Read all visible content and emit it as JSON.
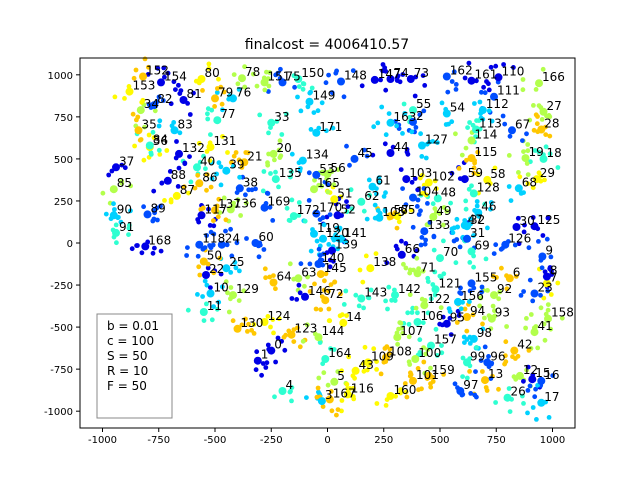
{
  "chart_data": {
    "type": "scatter",
    "title": "finalcost = 4006410.57",
    "xlabel": "",
    "ylabel": "",
    "xlim": [
      -1100,
      1100
    ],
    "ylim": [
      -1100,
      1100
    ],
    "xticks": [
      -1000,
      -750,
      -500,
      -250,
      0,
      250,
      500,
      750,
      1000
    ],
    "yticks": [
      -1000,
      -750,
      -500,
      -250,
      0,
      250,
      500,
      750,
      1000
    ],
    "grid": false,
    "legend_position": "bottom-left",
    "params": [
      "b = 0.01",
      "c = 100",
      "S = 50",
      "R = 10",
      "F = 50"
    ],
    "colormap": "jet",
    "labeled_points": [
      {
        "id": "0",
        "x": -250,
        "y": -640,
        "c": 0.0
      },
      {
        "id": "1",
        "x": -310,
        "y": -700,
        "c": 0.1
      },
      {
        "id": "2",
        "x": 380,
        "y": 720,
        "c": 0.1
      },
      {
        "id": "3",
        "x": -25,
        "y": -940,
        "c": 0.05
      },
      {
        "id": "4",
        "x": -200,
        "y": -880,
        "c": 0.0
      },
      {
        "id": "5",
        "x": 30,
        "y": -825,
        "c": 0.1
      },
      {
        "id": "6",
        "x": 810,
        "y": -210,
        "c": 0.5
      },
      {
        "id": "7",
        "x": 975,
        "y": -240,
        "c": 0.1
      },
      {
        "id": "8",
        "x": 975,
        "y": -200,
        "c": 0.1
      },
      {
        "id": "9",
        "x": 955,
        "y": -80,
        "c": 0.1
      },
      {
        "id": "10",
        "x": -520,
        "y": -300,
        "c": 0.1
      },
      {
        "id": "11",
        "x": -550,
        "y": -410,
        "c": 0.1
      },
      {
        "id": "12",
        "x": 855,
        "y": -790,
        "c": 0.1
      },
      {
        "id": "13",
        "x": 700,
        "y": -815,
        "c": 0.1
      },
      {
        "id": "14",
        "x": 70,
        "y": -475,
        "c": 0.1
      },
      {
        "id": "15",
        "x": 910,
        "y": -810,
        "c": 0.1
      },
      {
        "id": "16",
        "x": 950,
        "y": -820,
        "c": 0.1
      },
      {
        "id": "17",
        "x": 950,
        "y": -950,
        "c": 0.1
      },
      {
        "id": "18",
        "x": 960,
        "y": 500,
        "c": 0.1
      },
      {
        "id": "19",
        "x": 880,
        "y": 505,
        "c": 0.1
      },
      {
        "id": "20",
        "x": -240,
        "y": 530,
        "c": 0.1
      },
      {
        "id": "21",
        "x": -370,
        "y": 480,
        "c": 0.1
      },
      {
        "id": "22",
        "x": -540,
        "y": -190,
        "c": 0.1
      },
      {
        "id": "23",
        "x": 920,
        "y": -300,
        "c": 0.1
      },
      {
        "id": "24",
        "x": -470,
        "y": -10,
        "c": 0.1
      },
      {
        "id": "25",
        "x": -450,
        "y": -150,
        "c": 0.1
      },
      {
        "id": "26",
        "x": 800,
        "y": -920,
        "c": 0.1
      },
      {
        "id": "27",
        "x": 960,
        "y": 780,
        "c": 0.1
      },
      {
        "id": "28",
        "x": 950,
        "y": 675,
        "c": 0.1
      },
      {
        "id": "29",
        "x": 930,
        "y": 380,
        "c": 0.1
      },
      {
        "id": "30",
        "x": 840,
        "y": 95,
        "c": 0.1
      },
      {
        "id": "31",
        "x": 620,
        "y": 25,
        "c": 0.1
      },
      {
        "id": "32",
        "x": 620,
        "y": 100,
        "c": 0.1
      },
      {
        "id": "33",
        "x": -250,
        "y": 715,
        "c": 0.1
      },
      {
        "id": "34",
        "x": -830,
        "y": 790,
        "c": 0.1
      },
      {
        "id": "35",
        "x": -840,
        "y": 670,
        "c": 0.1
      },
      {
        "id": "36",
        "x": -790,
        "y": 570,
        "c": 0.1
      },
      {
        "id": "37",
        "x": -940,
        "y": 450,
        "c": 0.1
      },
      {
        "id": "38",
        "x": -390,
        "y": 325,
        "c": 0.1
      },
      {
        "id": "39",
        "x": -450,
        "y": 430,
        "c": 0.1
      },
      {
        "id": "40",
        "x": -580,
        "y": 450,
        "c": 0.1
      },
      {
        "id": "41",
        "x": 920,
        "y": -530,
        "c": 0.1
      },
      {
        "id": "42",
        "x": 830,
        "y": -640,
        "c": 0.1
      },
      {
        "id": "43",
        "x": 125,
        "y": -760,
        "c": 0.1
      },
      {
        "id": "44",
        "x": 280,
        "y": 535,
        "c": 0.1
      },
      {
        "id": "45",
        "x": 120,
        "y": 500,
        "c": 0.1
      },
      {
        "id": "46",
        "x": 670,
        "y": 180,
        "c": 0.1
      },
      {
        "id": "47",
        "x": 610,
        "y": 105,
        "c": 0.1
      },
      {
        "id": "48",
        "x": 490,
        "y": 265,
        "c": 0.1
      },
      {
        "id": "49",
        "x": 470,
        "y": 155,
        "c": 0.1
      },
      {
        "id": "50",
        "x": -550,
        "y": -110,
        "c": 0.1
      },
      {
        "id": "51",
        "x": 30,
        "y": 260,
        "c": 0.1
      },
      {
        "id": "52",
        "x": 45,
        "y": 165,
        "c": 0.1
      },
      {
        "id": "53",
        "x": -50,
        "y": 405,
        "c": 0.1
      },
      {
        "id": "54",
        "x": 530,
        "y": 770,
        "c": 0.1
      },
      {
        "id": "55",
        "x": 380,
        "y": 790,
        "c": 0.1
      },
      {
        "id": "56",
        "x": 0,
        "y": 410,
        "c": 0.1
      },
      {
        "id": "57",
        "x": 280,
        "y": 160,
        "c": 0.1
      },
      {
        "id": "58",
        "x": 710,
        "y": 375,
        "c": 0.1
      },
      {
        "id": "59",
        "x": 610,
        "y": 380,
        "c": 0.1
      },
      {
        "id": "60",
        "x": -320,
        "y": 0,
        "c": 0.1
      },
      {
        "id": "61",
        "x": 200,
        "y": 335,
        "c": 0.1
      },
      {
        "id": "62",
        "x": 150,
        "y": 245,
        "c": 0.1
      },
      {
        "id": "63",
        "x": -130,
        "y": -210,
        "c": 0.1
      },
      {
        "id": "64",
        "x": -240,
        "y": -235,
        "c": 0.1
      },
      {
        "id": "65",
        "x": 310,
        "y": 160,
        "c": 0.1
      },
      {
        "id": "66",
        "x": 330,
        "y": -70,
        "c": 0.1
      },
      {
        "id": "67",
        "x": 820,
        "y": 670,
        "c": 0.1
      },
      {
        "id": "68",
        "x": 850,
        "y": 325,
        "c": 0.1
      },
      {
        "id": "69",
        "x": 640,
        "y": -50,
        "c": 0.1
      },
      {
        "id": "70",
        "x": 500,
        "y": -90,
        "c": 0.1
      },
      {
        "id": "71",
        "x": 400,
        "y": -180,
        "c": 0.1
      },
      {
        "id": "72",
        "x": -10,
        "y": -340,
        "c": 0.1
      },
      {
        "id": "73",
        "x": 370,
        "y": 975,
        "c": 0.1
      },
      {
        "id": "74",
        "x": 280,
        "y": 975,
        "c": 0.1
      },
      {
        "id": "75",
        "x": -200,
        "y": 955,
        "c": 0.1
      },
      {
        "id": "76",
        "x": -420,
        "y": 860,
        "c": 0.1
      },
      {
        "id": "77",
        "x": -490,
        "y": 730,
        "c": 0.1
      },
      {
        "id": "78",
        "x": -380,
        "y": 980,
        "c": 0.1
      },
      {
        "id": "79",
        "x": -500,
        "y": 860,
        "c": 0.1
      },
      {
        "id": "80",
        "x": -560,
        "y": 975,
        "c": 0.1
      },
      {
        "id": "81",
        "x": -640,
        "y": 850,
        "c": 0.1
      },
      {
        "id": "82",
        "x": -770,
        "y": 820,
        "c": 0.1
      },
      {
        "id": "83",
        "x": -680,
        "y": 670,
        "c": 0.1
      },
      {
        "id": "84",
        "x": -790,
        "y": 580,
        "c": 0.1
      },
      {
        "id": "85",
        "x": -950,
        "y": 320,
        "c": 0.1
      },
      {
        "id": "86",
        "x": -570,
        "y": 355,
        "c": 0.1
      },
      {
        "id": "87",
        "x": -670,
        "y": 280,
        "c": 0.1
      },
      {
        "id": "88",
        "x": -710,
        "y": 370,
        "c": 0.1
      },
      {
        "id": "89",
        "x": -800,
        "y": 170,
        "c": 0.1
      },
      {
        "id": "90",
        "x": -950,
        "y": 165,
        "c": 0.1
      },
      {
        "id": "91",
        "x": -940,
        "y": 60,
        "c": 0.1
      },
      {
        "id": "92",
        "x": 740,
        "y": -310,
        "c": 0.1
      },
      {
        "id": "93",
        "x": 730,
        "y": -450,
        "c": 0.1
      },
      {
        "id": "94",
        "x": 620,
        "y": -440,
        "c": 0.1
      },
      {
        "id": "95",
        "x": 530,
        "y": -480,
        "c": 0.1
      },
      {
        "id": "96",
        "x": 710,
        "y": -710,
        "c": 0.1
      },
      {
        "id": "97",
        "x": 590,
        "y": -880,
        "c": 0.1
      },
      {
        "id": "98",
        "x": 650,
        "y": -570,
        "c": 0.1
      },
      {
        "id": "99",
        "x": 620,
        "y": -710,
        "c": 0.1
      },
      {
        "id": "100",
        "x": 390,
        "y": -690,
        "c": 0.1
      },
      {
        "id": "101",
        "x": 380,
        "y": -820,
        "c": 0.1
      },
      {
        "id": "102",
        "x": 450,
        "y": 360,
        "c": 0.1
      },
      {
        "id": "103",
        "x": 350,
        "y": 380,
        "c": 0.1
      },
      {
        "id": "104",
        "x": 380,
        "y": 270,
        "c": 0.1
      },
      {
        "id": "105",
        "x": 230,
        "y": 150,
        "c": 0.1
      },
      {
        "id": "106",
        "x": 400,
        "y": -470,
        "c": 0.1
      },
      {
        "id": "107",
        "x": 310,
        "y": -560,
        "c": 0.1
      },
      {
        "id": "108",
        "x": 260,
        "y": -680,
        "c": 0.1
      },
      {
        "id": "109",
        "x": 180,
        "y": -710,
        "c": 0.1
      },
      {
        "id": "110",
        "x": 760,
        "y": 985,
        "c": 0.1
      },
      {
        "id": "111",
        "x": 740,
        "y": 870,
        "c": 0.1
      },
      {
        "id": "112",
        "x": 690,
        "y": 790,
        "c": 0.1
      },
      {
        "id": "113",
        "x": 660,
        "y": 675,
        "c": 0.1
      },
      {
        "id": "114",
        "x": 640,
        "y": 610,
        "c": 0.1
      },
      {
        "id": "115",
        "x": 640,
        "y": 505,
        "c": 0.1
      },
      {
        "id": "116",
        "x": 90,
        "y": -900,
        "c": 0.1
      },
      {
        "id": "117",
        "x": -560,
        "y": 165,
        "c": 0.1
      },
      {
        "id": "118",
        "x": -570,
        "y": -10,
        "c": 0.1
      },
      {
        "id": "119",
        "x": -60,
        "y": 55,
        "c": 0.1
      },
      {
        "id": "120",
        "x": -20,
        "y": 25,
        "c": 0.1
      },
      {
        "id": "121",
        "x": 480,
        "y": -275,
        "c": 0.1
      },
      {
        "id": "122",
        "x": 430,
        "y": -370,
        "c": 0.1
      },
      {
        "id": "123",
        "x": -160,
        "y": -545,
        "c": 0.1
      },
      {
        "id": "124",
        "x": -280,
        "y": -470,
        "c": 0.1
      },
      {
        "id": "125",
        "x": 920,
        "y": 100,
        "c": 0.1
      },
      {
        "id": "126",
        "x": 790,
        "y": -10,
        "c": 0.1
      },
      {
        "id": "127",
        "x": 420,
        "y": 580,
        "c": 0.1
      },
      {
        "id": "128",
        "x": 650,
        "y": 295,
        "c": 0.1
      },
      {
        "id": "129",
        "x": -420,
        "y": -310,
        "c": 0.1
      },
      {
        "id": "130",
        "x": -400,
        "y": -510,
        "c": 0.1
      },
      {
        "id": "131",
        "x": -520,
        "y": 570,
        "c": 0.1
      },
      {
        "id": "132",
        "x": -660,
        "y": 530,
        "c": 0.1
      },
      {
        "id": "133",
        "x": 430,
        "y": 70,
        "c": 0.1
      },
      {
        "id": "134",
        "x": -110,
        "y": 490,
        "c": 0.1
      },
      {
        "id": "135",
        "x": -230,
        "y": 380,
        "c": 0.1
      },
      {
        "id": "136",
        "x": -430,
        "y": 200,
        "c": 0.1
      },
      {
        "id": "137",
        "x": -500,
        "y": 195,
        "c": 0.1
      },
      {
        "id": "138",
        "x": 190,
        "y": -150,
        "c": 0.1
      },
      {
        "id": "139",
        "x": 20,
        "y": -45,
        "c": 0.1
      },
      {
        "id": "140",
        "x": -40,
        "y": -125,
        "c": 0.1
      },
      {
        "id": "141",
        "x": 60,
        "y": 25,
        "c": 0.1
      },
      {
        "id": "142",
        "x": 300,
        "y": -310,
        "c": 0.1
      },
      {
        "id": "143",
        "x": 150,
        "y": -330,
        "c": 0.1
      },
      {
        "id": "144",
        "x": -40,
        "y": -560,
        "c": 0.1
      },
      {
        "id": "145",
        "x": -30,
        "y": -185,
        "c": 0.1
      },
      {
        "id": "146",
        "x": -100,
        "y": -320,
        "c": 0.1
      },
      {
        "id": "147",
        "x": 210,
        "y": 970,
        "c": 0.1
      },
      {
        "id": "148",
        "x": 60,
        "y": 960,
        "c": 0.1
      },
      {
        "id": "149",
        "x": -80,
        "y": 840,
        "c": 0.1
      },
      {
        "id": "150",
        "x": -130,
        "y": 975,
        "c": 0.1
      },
      {
        "id": "151",
        "x": -280,
        "y": 955,
        "c": 0.1
      },
      {
        "id": "152",
        "x": -820,
        "y": 990,
        "c": 0.1
      },
      {
        "id": "153",
        "x": -880,
        "y": 900,
        "c": 0.1
      },
      {
        "id": "154",
        "x": -740,
        "y": 955,
        "c": 0.1
      },
      {
        "id": "155",
        "x": 640,
        "y": -240,
        "c": 0.1
      },
      {
        "id": "156",
        "x": 580,
        "y": -350,
        "c": 0.1
      },
      {
        "id": "157",
        "x": 460,
        "y": -610,
        "c": 0.1
      },
      {
        "id": "158",
        "x": 980,
        "y": -450,
        "c": 0.1
      },
      {
        "id": "159",
        "x": 450,
        "y": -790,
        "c": 0.1
      },
      {
        "id": "160",
        "x": 280,
        "y": -910,
        "c": 0.1
      },
      {
        "id": "161",
        "x": 640,
        "y": 965,
        "c": 0.1
      },
      {
        "id": "162",
        "x": 530,
        "y": 990,
        "c": 0.1
      },
      {
        "id": "163",
        "x": 280,
        "y": 715,
        "c": 0.1
      },
      {
        "id": "164",
        "x": -10,
        "y": -690,
        "c": 0.1
      },
      {
        "id": "165",
        "x": -60,
        "y": 320,
        "c": 0.1
      },
      {
        "id": "166",
        "x": 940,
        "y": 950,
        "c": 0.1
      },
      {
        "id": "167",
        "x": 10,
        "y": -930,
        "c": 0.1
      },
      {
        "id": "168",
        "x": -810,
        "y": -20,
        "c": 0.1
      },
      {
        "id": "169",
        "x": -280,
        "y": 210,
        "c": 0.1
      },
      {
        "id": "170",
        "x": -50,
        "y": 175,
        "c": 0.1
      },
      {
        "id": "171",
        "x": -50,
        "y": 655,
        "c": 0.1
      },
      {
        "id": "172",
        "x": -150,
        "y": 160,
        "c": 0.1
      }
    ]
  }
}
